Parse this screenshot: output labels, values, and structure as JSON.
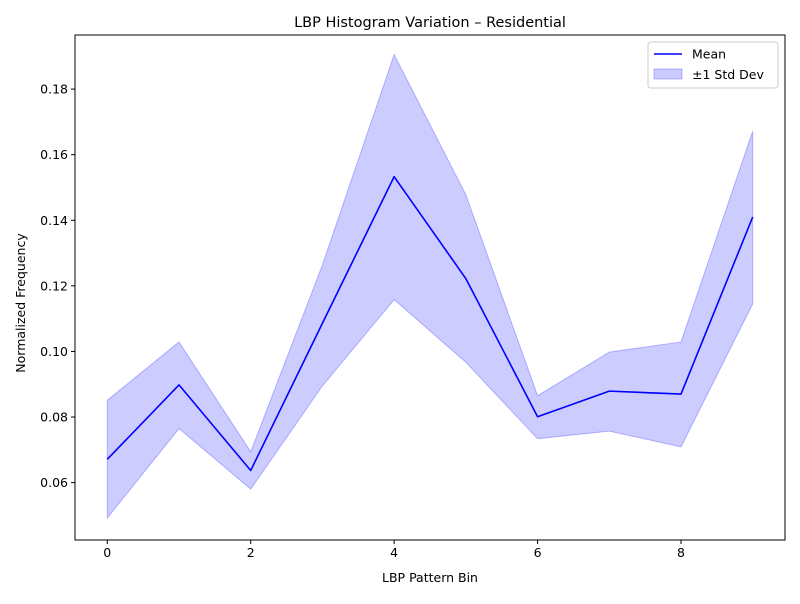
{
  "chart_data": {
    "type": "line",
    "title": "LBP Histogram Variation – Residential",
    "xlabel": "LBP Pattern Bin",
    "ylabel": "Normalized Frequency",
    "x": [
      0,
      1,
      2,
      3,
      4,
      5,
      6,
      7,
      8,
      9
    ],
    "xlim": [
      -0.45,
      9.45
    ],
    "ylim": [
      0.0425,
      0.1965
    ],
    "xticks": [
      0,
      2,
      4,
      6,
      8
    ],
    "xtick_labels": [
      "0",
      "2",
      "4",
      "6",
      "8"
    ],
    "yticks": [
      0.06,
      0.08,
      0.1,
      0.12,
      0.14,
      0.16,
      0.18
    ],
    "ytick_labels": [
      "0.06",
      "0.08",
      "0.10",
      "0.12",
      "0.14",
      "0.16",
      "0.18"
    ],
    "grid": false,
    "legend_position": "top-right",
    "series": [
      {
        "name": "Mean",
        "kind": "line",
        "color": "#0000ff",
        "values": [
          0.0671,
          0.0898,
          0.0637,
          0.1086,
          0.1533,
          0.1222,
          0.0801,
          0.0879,
          0.087,
          0.141
        ]
      },
      {
        "name": "±1 Std Dev",
        "kind": "band",
        "color": "#0000ff",
        "fill_opacity": 0.2,
        "lower": [
          0.0492,
          0.0765,
          0.058,
          0.0895,
          0.1158,
          0.0967,
          0.0734,
          0.0757,
          0.0709,
          0.1145
        ],
        "upper": [
          0.0851,
          0.1029,
          0.0694,
          0.1264,
          0.1905,
          0.1478,
          0.0865,
          0.0998,
          0.1029,
          0.1672
        ]
      }
    ]
  }
}
